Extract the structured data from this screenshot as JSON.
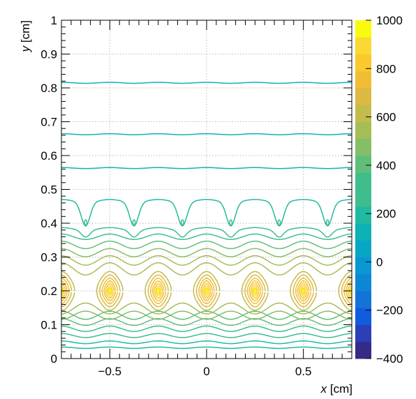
{
  "chart_data": {
    "type": "contour",
    "xlabel_var": "x",
    "xlabel_unit": " [cm]",
    "ylabel_var": "y",
    "ylabel_unit": " [cm]",
    "xlim": [
      -0.75,
      0.75
    ],
    "ylim": [
      0,
      1
    ],
    "x_ticks": [
      {
        "value": -0.5,
        "label": "−0.5"
      },
      {
        "value": 0,
        "label": "0"
      },
      {
        "value": 0.5,
        "label": "0.5"
      }
    ],
    "y_ticks": [
      {
        "value": 0,
        "label": "0"
      },
      {
        "value": 0.1,
        "label": "0.1"
      },
      {
        "value": 0.2,
        "label": "0.2"
      },
      {
        "value": 0.3,
        "label": "0.3"
      },
      {
        "value": 0.4,
        "label": "0.4"
      },
      {
        "value": 0.5,
        "label": "0.5"
      },
      {
        "value": 0.6,
        "label": "0.6"
      },
      {
        "value": 0.7,
        "label": "0.7"
      },
      {
        "value": 0.8,
        "label": "0.8"
      },
      {
        "value": 0.9,
        "label": "0.9"
      },
      {
        "value": 1,
        "label": "1"
      }
    ],
    "grid": true,
    "colorbar": {
      "range": [
        -400,
        1000
      ],
      "ticks": [
        {
          "value": 1000,
          "label": "1000"
        },
        {
          "value": 800,
          "label": "800"
        },
        {
          "value": 600,
          "label": "600"
        },
        {
          "value": 400,
          "label": "400"
        },
        {
          "value": 200,
          "label": "200"
        },
        {
          "value": 0,
          "label": "0"
        },
        {
          "value": -200,
          "label": "−200"
        },
        {
          "value": -400,
          "label": "−400"
        }
      ],
      "palette": [
        "#352a87",
        "#2c3fb8",
        "#0f5cdd",
        "#1373d9",
        "#0d86d3",
        "#0898d1",
        "#07a7c4",
        "#0eb2b4",
        "#21baa0",
        "#3fbd8d",
        "#61be7a",
        "#84be66",
        "#a5bd56",
        "#c3bb4b",
        "#dcb941",
        "#f0bd35",
        "#fac92e",
        "#f9d932",
        "#f9fb0e"
      ],
      "palette_levels": 20
    },
    "pattern": {
      "wire_period": 0.25,
      "wire_x_positions": [
        -0.75,
        -0.5,
        -0.25,
        0,
        0.25,
        0.5,
        0.75
      ],
      "wire_y": 0.2,
      "saddle_y": 0.4,
      "upper_field_lines_y": [
        0.815,
        0.663,
        0.563
      ],
      "lower_field_lines_y": [
        0.032,
        0.048,
        0.068,
        0.088,
        0.108,
        0.128
      ]
    }
  }
}
